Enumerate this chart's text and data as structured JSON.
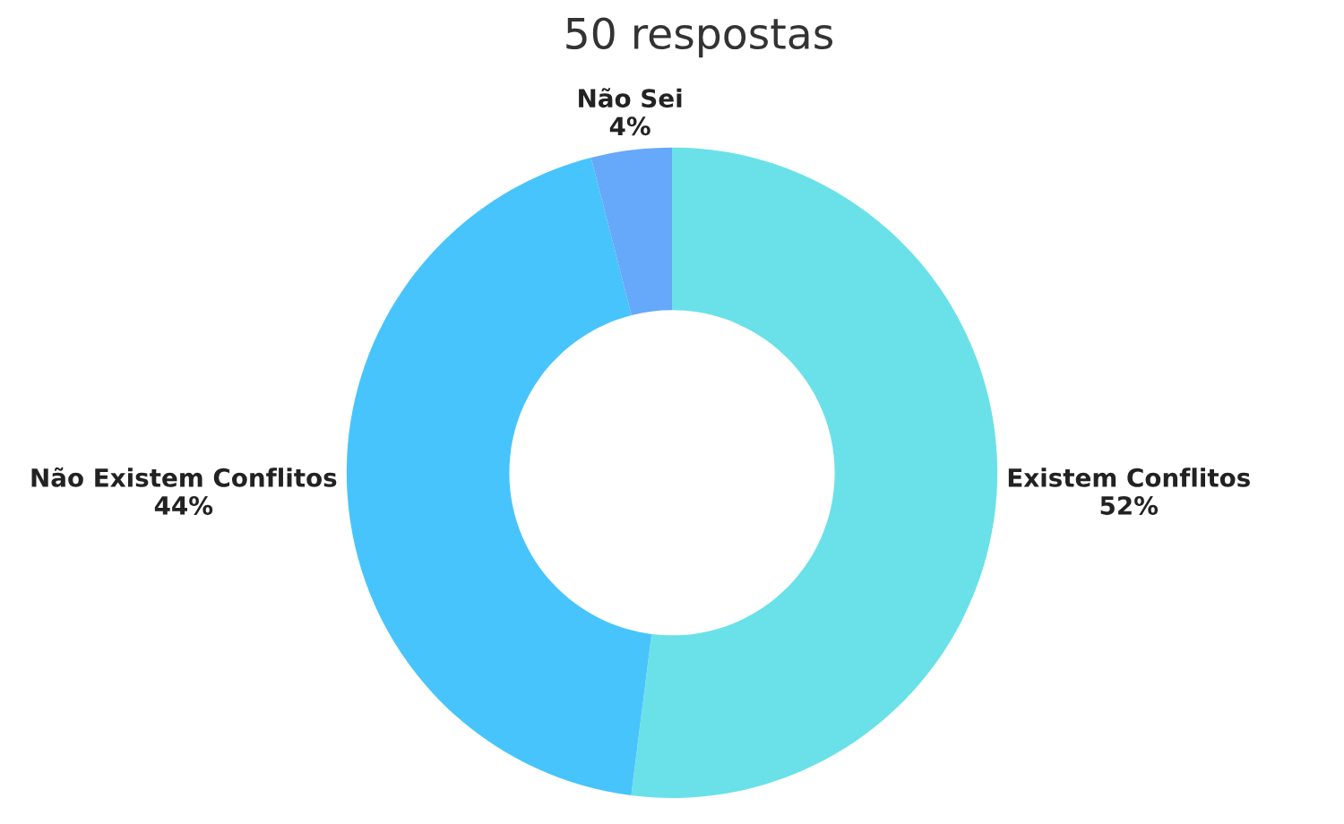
{
  "chart_data": {
    "type": "donut",
    "title": "50 respostas",
    "categories": [
      "Existem Conflitos",
      "Não Existem Conflitos",
      "Não Sei"
    ],
    "values": [
      52,
      44,
      4
    ],
    "value_labels": [
      "52%",
      "44%",
      "4%"
    ],
    "colors": [
      "#6ae1e8",
      "#48c4fc",
      "#66a8fa"
    ],
    "legend": false
  }
}
